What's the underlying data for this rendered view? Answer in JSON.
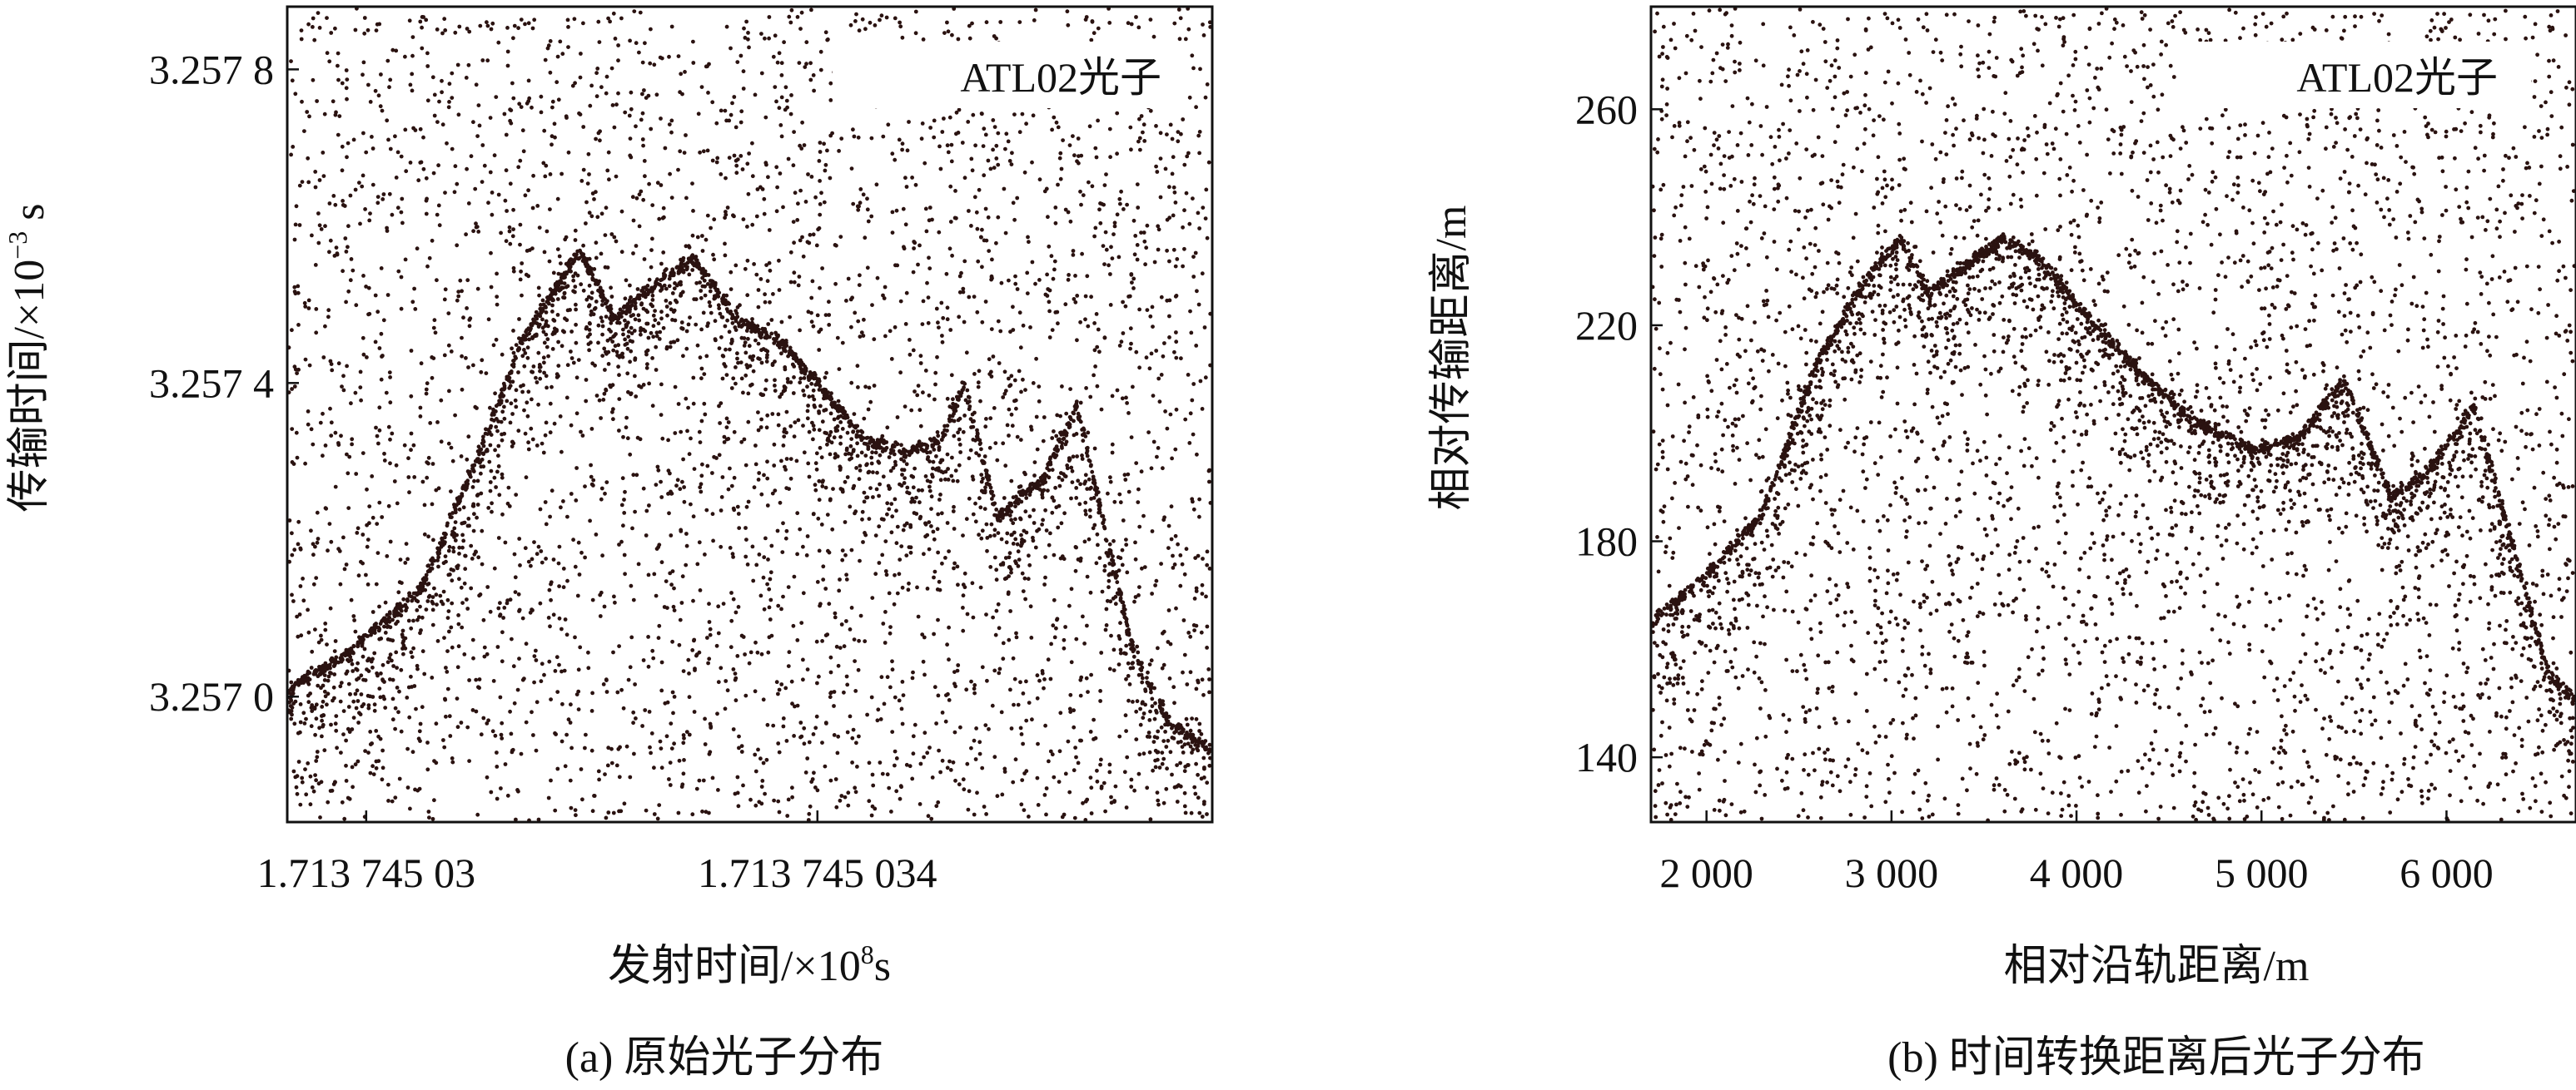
{
  "chart_data": [
    {
      "type": "scatter",
      "caption": "(a) 原始光子分布",
      "xlabel_main": "发射时间/×10",
      "xlabel_exp": "8",
      "xlabel_tail": "s",
      "ylabel_main": "传输时间/×10",
      "ylabel_exp": "−3",
      "ylabel_tail": " s",
      "xticks": [
        {
          "value": 1713745030,
          "label": "1.713 745 03"
        },
        {
          "value": 1713745034,
          "label": "1.713 745 034"
        }
      ],
      "yticks": [
        {
          "value": 3.257,
          "label": "3.257 0"
        },
        {
          "value": 3.2574,
          "label": "3.257 4"
        },
        {
          "value": 3.2578,
          "label": "3.257 8"
        }
      ],
      "xlim": [
        1713745029.3,
        1713745037.5
      ],
      "ylim": [
        3.25684,
        3.25788
      ],
      "legend": "ATL02光子",
      "legend_position": "top-right",
      "noise_density": 0.0034,
      "surface_profile": [
        [
          1713745029.3,
          3.25701
        ],
        [
          1713745029.8,
          3.25705
        ],
        [
          1713745030.5,
          3.25714
        ],
        [
          1713745031.0,
          3.25731
        ],
        [
          1713745031.4,
          3.25746
        ],
        [
          1713745031.9,
          3.25757
        ],
        [
          1713745032.2,
          3.25748
        ],
        [
          1713745032.5,
          3.25752
        ],
        [
          1713745032.9,
          3.25756
        ],
        [
          1713745033.3,
          3.25748
        ],
        [
          1713745033.7,
          3.25745
        ],
        [
          1713745034.0,
          3.2574
        ],
        [
          1713745034.4,
          3.25733
        ],
        [
          1713745034.8,
          3.25731
        ],
        [
          1713745035.1,
          3.25733
        ],
        [
          1713745035.3,
          3.2574
        ],
        [
          1713745035.6,
          3.25723
        ],
        [
          1713745036.0,
          3.25728
        ],
        [
          1713745036.3,
          3.25737
        ],
        [
          1713745036.8,
          3.25706
        ],
        [
          1713745037.1,
          3.25697
        ],
        [
          1713745037.5,
          3.25693
        ]
      ]
    },
    {
      "type": "scatter",
      "caption": "(b) 时间转换距离后光子分布",
      "xlabel_main": "相对沿轨距离/m",
      "ylabel_main": "相对传输距离/m",
      "xticks": [
        {
          "value": 2000,
          "label": "2 000"
        },
        {
          "value": 3000,
          "label": "3 000"
        },
        {
          "value": 4000,
          "label": "4 000"
        },
        {
          "value": 5000,
          "label": "5 000"
        },
        {
          "value": 6000,
          "label": "6 000"
        }
      ],
      "yticks": [
        {
          "value": 140,
          "label": "140"
        },
        {
          "value": 180,
          "label": "180"
        },
        {
          "value": 220,
          "label": "220"
        },
        {
          "value": 260,
          "label": "260"
        }
      ],
      "xlim": [
        1700,
        6700
      ],
      "ylim": [
        128,
        279
      ],
      "legend": "ATL02光子",
      "legend_position": "top-right",
      "noise_density": 0.0034,
      "surface_profile": [
        [
          1700,
          165
        ],
        [
          1950,
          172
        ],
        [
          2300,
          185
        ],
        [
          2600,
          213
        ],
        [
          2850,
          228
        ],
        [
          3050,
          236
        ],
        [
          3200,
          226
        ],
        [
          3400,
          231
        ],
        [
          3600,
          236
        ],
        [
          3800,
          232
        ],
        [
          4050,
          222
        ],
        [
          4300,
          213
        ],
        [
          4600,
          203
        ],
        [
          4950,
          197
        ],
        [
          5200,
          199
        ],
        [
          5450,
          210
        ],
        [
          5700,
          188
        ],
        [
          5900,
          193
        ],
        [
          6150,
          205
        ],
        [
          6400,
          174
        ],
        [
          6550,
          156
        ],
        [
          6700,
          150
        ]
      ]
    }
  ]
}
